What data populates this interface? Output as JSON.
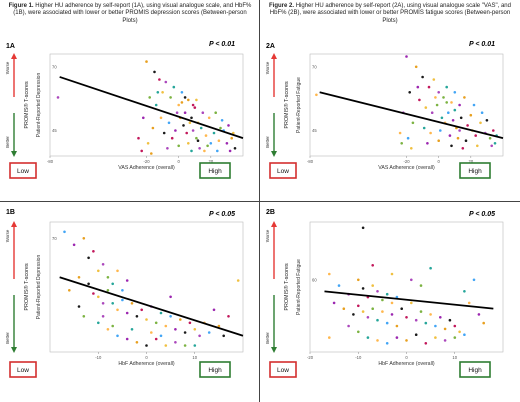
{
  "captions": {
    "left": {
      "fig": "Figure 1.",
      "text": " Higher HU adherence by self-report (1A), using visual analogue scale, and HbF% (1B), were associated with lower or better PROMIS depression scores (Between-person Plots)"
    },
    "right": {
      "fig": "Figure 2.",
      "text": " Higher HU adherence by self-report (2A), using visual analogue scale \"VAS\", and HbF% (2B), were associated with lower or better PROMIS fatigue scores (Between-person Plots)"
    }
  },
  "colors": {
    "arrow_worse": "#e53935",
    "arrow_better": "#2e7d32",
    "box_low": "#d32f2f",
    "box_high": "#2e7d32",
    "palette": [
      "#e8a020",
      "#f0c040",
      "#26a69a",
      "#9c27b0",
      "#c2185b",
      "#7cb342",
      "#42a5f5",
      "#1a1a1a",
      "#ab47bc",
      "#ffb74d"
    ]
  },
  "chart_data": [
    {
      "id": "1A",
      "type": "scatter",
      "p_label": "P < 0.01",
      "ylabel_outer": "PROMIS® T-scores",
      "ylabel_inner": "Patient-Reported Depression",
      "xlabel": "VAS Adherence (overall)",
      "worse_label": "Worse",
      "better_label": "Better",
      "low_label": "Low",
      "high_label": "High",
      "xlim": [
        -80,
        40
      ],
      "ylim": [
        35,
        75
      ],
      "xticks": [
        {
          "v": -80,
          "l": "-80"
        },
        {
          "v": -20,
          "l": "-20"
        },
        {
          "v": 0,
          "l": "0"
        },
        {
          "v": 20,
          "l": "20"
        }
      ],
      "yticks": [
        {
          "v": 45,
          "l": "45"
        },
        {
          "v": 70,
          "l": "70"
        }
      ],
      "trend": {
        "x": [
          -74,
          40
        ],
        "y": [
          66,
          42
        ]
      },
      "points": [
        [
          -20,
          72
        ],
        [
          -15,
          68
        ],
        [
          -12,
          65
        ],
        [
          -10,
          60
        ],
        [
          -8,
          64
        ],
        [
          -5,
          58
        ],
        [
          -3,
          62
        ],
        [
          0,
          55
        ],
        [
          2,
          60
        ],
        [
          4,
          52
        ],
        [
          6,
          57
        ],
        [
          8,
          50
        ],
        [
          10,
          54
        ],
        [
          12,
          48
        ],
        [
          15,
          52
        ],
        [
          -18,
          58
        ],
        [
          -14,
          55
        ],
        [
          -11,
          50
        ],
        [
          -6,
          48
        ],
        [
          -2,
          45
        ],
        [
          1,
          50
        ],
        [
          3,
          47
        ],
        [
          5,
          44
        ],
        [
          7,
          48
        ],
        [
          9,
          45
        ],
        [
          11,
          42
        ],
        [
          14,
          46
        ],
        [
          17,
          43
        ],
        [
          20,
          40
        ],
        [
          -22,
          50
        ],
        [
          -16,
          46
        ],
        [
          -9,
          44
        ],
        [
          -4,
          42
        ],
        [
          6,
          40
        ],
        [
          13,
          38
        ],
        [
          18,
          39
        ],
        [
          22,
          44
        ],
        [
          25,
          41
        ],
        [
          28,
          45
        ],
        [
          30,
          40
        ],
        [
          33,
          42
        ],
        [
          35,
          38
        ],
        [
          -25,
          42
        ],
        [
          -19,
          40
        ],
        [
          -7,
          38
        ],
        [
          0,
          39
        ],
        [
          8,
          37
        ],
        [
          16,
          37
        ],
        [
          24,
          37
        ],
        [
          32,
          37
        ],
        [
          2,
          56
        ],
        [
          4,
          58
        ],
        [
          9,
          55
        ],
        [
          11,
          57
        ],
        [
          -1,
          52
        ],
        [
          26,
          46
        ],
        [
          -13,
          60
        ],
        [
          19,
          50
        ],
        [
          27,
          49
        ],
        [
          31,
          47
        ],
        [
          -17,
          36
        ],
        [
          12,
          41
        ],
        [
          -23,
          37
        ],
        [
          34,
          44
        ],
        [
          -75,
          58
        ],
        [
          23,
          52
        ]
      ]
    },
    {
      "id": "2A",
      "type": "scatter",
      "p_label": "P < 0.01",
      "ylabel_outer": "PROMIS® T-scores",
      "ylabel_inner": "Patient-Reported Fatigue",
      "xlabel": "VAS Adherence (overall)",
      "worse_label": "Worse",
      "better_label": "Better",
      "low_label": "Low",
      "high_label": "High",
      "xlim": [
        -80,
        40
      ],
      "ylim": [
        35,
        75
      ],
      "xticks": [
        {
          "v": -80,
          "l": "-80"
        },
        {
          "v": -20,
          "l": "-20"
        },
        {
          "v": 0,
          "l": "0"
        },
        {
          "v": 20,
          "l": "20"
        }
      ],
      "yticks": [
        {
          "v": 45,
          "l": "45"
        },
        {
          "v": 70,
          "l": "70"
        }
      ],
      "trend": {
        "x": [
          -74,
          40
        ],
        "y": [
          60,
          42
        ]
      },
      "points": [
        [
          -20,
          74
        ],
        [
          -14,
          70
        ],
        [
          -10,
          66
        ],
        [
          -6,
          62
        ],
        [
          -3,
          65
        ],
        [
          0,
          60
        ],
        [
          3,
          58
        ],
        [
          5,
          62
        ],
        [
          8,
          56
        ],
        [
          10,
          60
        ],
        [
          13,
          55
        ],
        [
          16,
          58
        ],
        [
          -18,
          60
        ],
        [
          -12,
          57
        ],
        [
          -8,
          54
        ],
        [
          -4,
          52
        ],
        [
          -1,
          55
        ],
        [
          2,
          50
        ],
        [
          4,
          48
        ],
        [
          6,
          52
        ],
        [
          9,
          49
        ],
        [
          11,
          46
        ],
        [
          14,
          50
        ],
        [
          18,
          47
        ],
        [
          21,
          45
        ],
        [
          -22,
          52
        ],
        [
          -16,
          48
        ],
        [
          -9,
          46
        ],
        [
          -5,
          44
        ],
        [
          1,
          45
        ],
        [
          7,
          43
        ],
        [
          12,
          42
        ],
        [
          17,
          41
        ],
        [
          23,
          43
        ],
        [
          26,
          48
        ],
        [
          29,
          44
        ],
        [
          32,
          42
        ],
        [
          35,
          40
        ],
        [
          -24,
          44
        ],
        [
          -19,
          42
        ],
        [
          -7,
          40
        ],
        [
          0,
          41
        ],
        [
          8,
          39
        ],
        [
          15,
          38
        ],
        [
          24,
          39
        ],
        [
          33,
          39
        ],
        [
          5,
          56
        ],
        [
          10,
          53
        ],
        [
          -2,
          58
        ],
        [
          27,
          52
        ],
        [
          -13,
          62
        ],
        [
          20,
          51
        ],
        [
          30,
          49
        ],
        [
          34,
          45
        ],
        [
          -17,
          38
        ],
        [
          13,
          45
        ],
        [
          -23,
          40
        ],
        [
          36,
          43
        ],
        [
          -76,
          59
        ],
        [
          22,
          55
        ]
      ]
    },
    {
      "id": "1B",
      "type": "scatter",
      "p_label": "P < 0.05",
      "ylabel_outer": "PROMIS® T-scores",
      "ylabel_inner": "Patient-Reported Depression",
      "xlabel": "HbF Adherence (overall)",
      "worse_label": "Worse",
      "better_label": "Better",
      "low_label": "Low",
      "high_label": "High",
      "xlim": [
        -20,
        20
      ],
      "ylim": [
        35,
        75
      ],
      "xticks": [
        {
          "v": -10,
          "l": "-10"
        },
        {
          "v": 0,
          "l": "0"
        },
        {
          "v": 10,
          "l": "10"
        }
      ],
      "yticks": [
        {
          "v": 70,
          "l": "70"
        }
      ],
      "trend": {
        "x": [
          -18,
          20
        ],
        "y": [
          58,
          40
        ]
      },
      "points": [
        [
          -17,
          72
        ],
        [
          -15,
          68
        ],
        [
          -13,
          70
        ],
        [
          -12,
          64
        ],
        [
          -11,
          66
        ],
        [
          -10,
          60
        ],
        [
          -9,
          62
        ],
        [
          -8,
          58
        ],
        [
          -7,
          56
        ],
        [
          -6,
          60
        ],
        [
          -5,
          54
        ],
        [
          -4,
          57
        ],
        [
          -14,
          58
        ],
        [
          -12,
          56
        ],
        [
          -11,
          53
        ],
        [
          -10,
          52
        ],
        [
          -9,
          50
        ],
        [
          -8,
          54
        ],
        [
          -7,
          50
        ],
        [
          -6,
          48
        ],
        [
          -5,
          51
        ],
        [
          -4,
          47
        ],
        [
          -3,
          50
        ],
        [
          -2,
          46
        ],
        [
          -1,
          48
        ],
        [
          0,
          45
        ],
        [
          1,
          49
        ],
        [
          2,
          44
        ],
        [
          3,
          47
        ],
        [
          4,
          43
        ],
        [
          5,
          46
        ],
        [
          6,
          42
        ],
        [
          7,
          45
        ],
        [
          8,
          41
        ],
        [
          9,
          44
        ],
        [
          10,
          42
        ],
        [
          11,
          40
        ],
        [
          -13,
          46
        ],
        [
          -10,
          44
        ],
        [
          -8,
          42
        ],
        [
          -6,
          40
        ],
        [
          -4,
          39
        ],
        [
          -2,
          38
        ],
        [
          0,
          37
        ],
        [
          2,
          39
        ],
        [
          4,
          37
        ],
        [
          6,
          38
        ],
        [
          8,
          37
        ],
        [
          10,
          37
        ],
        [
          12,
          44
        ],
        [
          13,
          41
        ],
        [
          14,
          48
        ],
        [
          15,
          43
        ],
        [
          16,
          40
        ],
        [
          17,
          46
        ],
        [
          19,
          57
        ],
        [
          -9,
          46
        ],
        [
          -7,
          43
        ],
        [
          -3,
          42
        ],
        [
          1,
          41
        ],
        [
          3,
          40
        ],
        [
          5,
          52
        ],
        [
          -16,
          54
        ],
        [
          -14,
          49
        ]
      ]
    },
    {
      "id": "2B",
      "type": "scatter",
      "p_label": "P < 0.05",
      "ylabel_outer": "PROMIS® T-scores",
      "ylabel_inner": "Patient-Reported Fatigue",
      "xlabel": "HbF Adherence (overall)",
      "worse_label": "Worse",
      "better_label": "Better",
      "low_label": "Low",
      "high_label": "High",
      "xlim": [
        -20,
        20
      ],
      "ylim": [
        35,
        80
      ],
      "xticks": [
        {
          "v": -20,
          "l": "-20"
        },
        {
          "v": -10,
          "l": "-10"
        },
        {
          "v": 0,
          "l": "0"
        },
        {
          "v": 10,
          "l": "10"
        }
      ],
      "yticks": [
        {
          "v": 60,
          "l": "60"
        }
      ],
      "trend": {
        "x": [
          -17,
          18
        ],
        "y": [
          56,
          50
        ]
      },
      "points": [
        [
          -16,
          62
        ],
        [
          -14,
          58
        ],
        [
          -12,
          55
        ],
        [
          -10,
          60
        ],
        [
          -9,
          57
        ],
        [
          -8,
          54
        ],
        [
          -7,
          58
        ],
        [
          -6,
          56
        ],
        [
          -5,
          53
        ],
        [
          -4,
          55
        ],
        [
          -3,
          52
        ],
        [
          -2,
          54
        ],
        [
          -15,
          52
        ],
        [
          -13,
          50
        ],
        [
          -11,
          48
        ],
        [
          -10,
          51
        ],
        [
          -9,
          49
        ],
        [
          -8,
          47
        ],
        [
          -7,
          50
        ],
        [
          -6,
          46
        ],
        [
          -5,
          49
        ],
        [
          -4,
          45
        ],
        [
          -3,
          48
        ],
        [
          -2,
          44
        ],
        [
          -1,
          50
        ],
        [
          0,
          47
        ],
        [
          1,
          52
        ],
        [
          2,
          46
        ],
        [
          3,
          49
        ],
        [
          4,
          45
        ],
        [
          5,
          48
        ],
        [
          6,
          44
        ],
        [
          7,
          47
        ],
        [
          8,
          43
        ],
        [
          9,
          46
        ],
        [
          10,
          44
        ],
        [
          11,
          42
        ],
        [
          -12,
          44
        ],
        [
          -10,
          42
        ],
        [
          -8,
          40
        ],
        [
          -6,
          39
        ],
        [
          -4,
          38
        ],
        [
          -2,
          40
        ],
        [
          0,
          39
        ],
        [
          2,
          41
        ],
        [
          4,
          38
        ],
        [
          6,
          40
        ],
        [
          8,
          39
        ],
        [
          10,
          40
        ],
        [
          12,
          56
        ],
        [
          13,
          52
        ],
        [
          14,
          60
        ],
        [
          15,
          48
        ],
        [
          16,
          45
        ],
        [
          -9,
          78
        ],
        [
          -7,
          65
        ],
        [
          -3,
          62
        ],
        [
          1,
          60
        ],
        [
          3,
          58
        ],
        [
          5,
          64
        ],
        [
          -16,
          40
        ],
        [
          12,
          41
        ]
      ]
    }
  ]
}
